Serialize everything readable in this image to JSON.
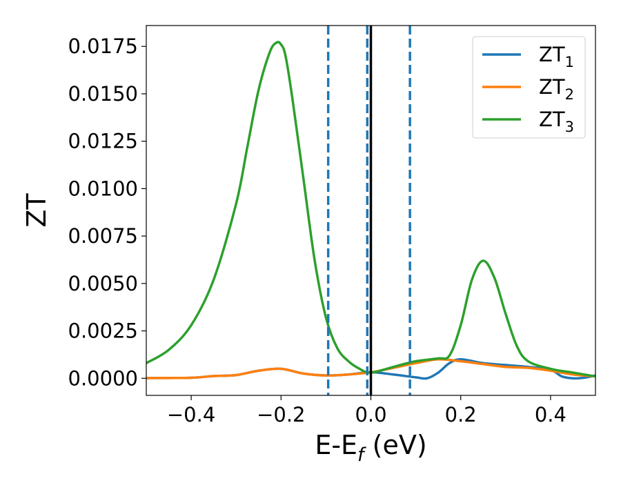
{
  "chart_data": {
    "type": "line",
    "xlabel": "E-E",
    "xlabel_sub": "f",
    "xlabel_unit": " (eV)",
    "ylabel": "ZT",
    "xlim": [
      -0.5,
      0.5
    ],
    "ylim": [
      -0.0009,
      0.0186
    ],
    "xticks": [
      -0.4,
      -0.2,
      0.0,
      0.2,
      0.4
    ],
    "xtick_labels": [
      "−0.4",
      "−0.2",
      "0.0",
      "0.2",
      "0.4"
    ],
    "yticks": [
      0.0,
      0.0025,
      0.005,
      0.0075,
      0.01,
      0.0125,
      0.015,
      0.0175
    ],
    "ytick_labels": [
      "0.0000",
      "0.0025",
      "0.0050",
      "0.0075",
      "0.0100",
      "0.0125",
      "0.0150",
      "0.0175"
    ],
    "grid": false,
    "legend_position": "top-right",
    "vlines": [
      {
        "x": -0.095,
        "style": "dashed",
        "color": "#1f77b4"
      },
      {
        "x": -0.008,
        "style": "dashed",
        "color": "#1f77b4"
      },
      {
        "x": 0.0,
        "style": "solid",
        "color": "#000000"
      },
      {
        "x": 0.087,
        "style": "dashed",
        "color": "#1f77b4"
      }
    ],
    "series": [
      {
        "name": "ZT",
        "sub": "1",
        "color": "#1f77b4",
        "x": [
          -0.5,
          -0.4,
          -0.35,
          -0.3,
          -0.25,
          -0.2,
          -0.15,
          -0.1,
          -0.05,
          0.0,
          0.05,
          0.1,
          0.125,
          0.15,
          0.175,
          0.2,
          0.25,
          0.3,
          0.35,
          0.4,
          0.425,
          0.45,
          0.475,
          0.5
        ],
        "y": [
          1e-05,
          3e-05,
          0.00012,
          0.00017,
          0.0004,
          0.0005,
          0.00025,
          0.00015,
          0.0002,
          0.00032,
          0.0002,
          5e-05,
          0.0,
          0.0003,
          0.0008,
          0.001,
          0.0008,
          0.0007,
          0.0006,
          0.00045,
          0.0001,
          0.0,
          3e-05,
          0.00015
        ]
      },
      {
        "name": "ZT",
        "sub": "2",
        "color": "#ff7f0e",
        "x": [
          -0.5,
          -0.4,
          -0.35,
          -0.3,
          -0.25,
          -0.2,
          -0.15,
          -0.1,
          -0.05,
          0.0,
          0.05,
          0.1,
          0.15,
          0.2,
          0.25,
          0.3,
          0.35,
          0.4,
          0.45,
          0.5
        ],
        "y": [
          1e-05,
          3e-05,
          0.00012,
          0.00017,
          0.0004,
          0.0005,
          0.00025,
          0.00015,
          0.0002,
          0.00032,
          0.00055,
          0.0008,
          0.001,
          0.0009,
          0.00075,
          0.0006,
          0.00055,
          0.0004,
          0.0002,
          0.0001
        ]
      },
      {
        "name": "ZT",
        "sub": "3",
        "color": "#2ca02c",
        "x": [
          -0.5,
          -0.45,
          -0.4,
          -0.35,
          -0.3,
          -0.275,
          -0.25,
          -0.225,
          -0.21,
          -0.2,
          -0.19,
          -0.175,
          -0.15,
          -0.125,
          -0.1,
          -0.075,
          -0.05,
          -0.025,
          0.0,
          0.05,
          0.1,
          0.15,
          0.175,
          0.2,
          0.225,
          0.25,
          0.275,
          0.3,
          0.325,
          0.35,
          0.4,
          0.45,
          0.5
        ],
        "y": [
          0.0008,
          0.0015,
          0.0028,
          0.0052,
          0.0092,
          0.0122,
          0.0152,
          0.0172,
          0.0177,
          0.0176,
          0.017,
          0.0148,
          0.0105,
          0.0062,
          0.0032,
          0.0016,
          0.0009,
          0.0005,
          0.0003,
          0.0006,
          0.0009,
          0.00105,
          0.0012,
          0.0028,
          0.0052,
          0.0062,
          0.0053,
          0.0034,
          0.0017,
          0.0009,
          0.0005,
          0.0003,
          0.0001
        ]
      }
    ]
  }
}
